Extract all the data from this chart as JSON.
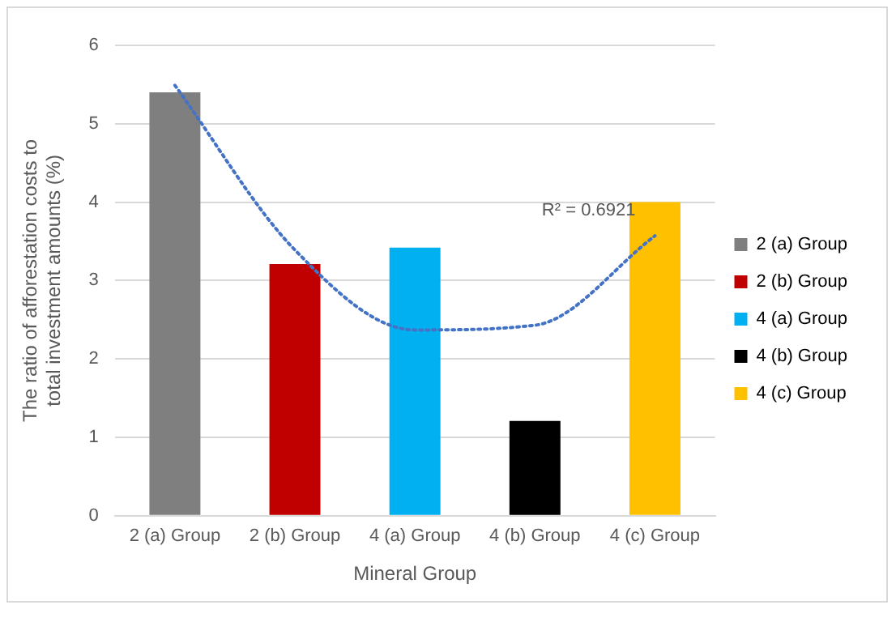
{
  "chart_data": {
    "type": "bar",
    "xlabel": "Mineral Group",
    "ylabel": "The ratio of afforestation costs to total investment amounts (%)",
    "categories": [
      "2 (a) Group",
      "2 (b) Group",
      "4 (a) Group",
      "4 (b) Group",
      "4 (c) Group"
    ],
    "series": [
      {
        "name": "2 (a) Group",
        "color": "#7f7f7f",
        "values": [
          5.4,
          null,
          null,
          null,
          null
        ]
      },
      {
        "name": "2 (b) Group",
        "color": "#c00000",
        "values": [
          null,
          3.21,
          null,
          null,
          null
        ]
      },
      {
        "name": "4 (a) Group",
        "color": "#00b0f0",
        "values": [
          null,
          null,
          3.42,
          null,
          null
        ]
      },
      {
        "name": "4 (b) Group",
        "color": "#000000",
        "values": [
          null,
          null,
          null,
          1.21,
          null
        ]
      },
      {
        "name": "4 (c) Group",
        "color": "#ffc000",
        "values": [
          null,
          null,
          null,
          null,
          4.0
        ]
      },
      {
        "type": "line",
        "values": [
          5.49,
          3.39,
          2.37,
          2.43,
          3.57
        ],
        "color": "#4472c4",
        "line_style": "dotted",
        "marker": "none"
      }
    ],
    "ylim": [
      0,
      6
    ],
    "yticks": [
      0,
      1,
      2,
      3,
      4,
      5,
      6
    ],
    "grid": "y",
    "legend": "right",
    "annotations": [
      "R² = 0.6921"
    ]
  }
}
